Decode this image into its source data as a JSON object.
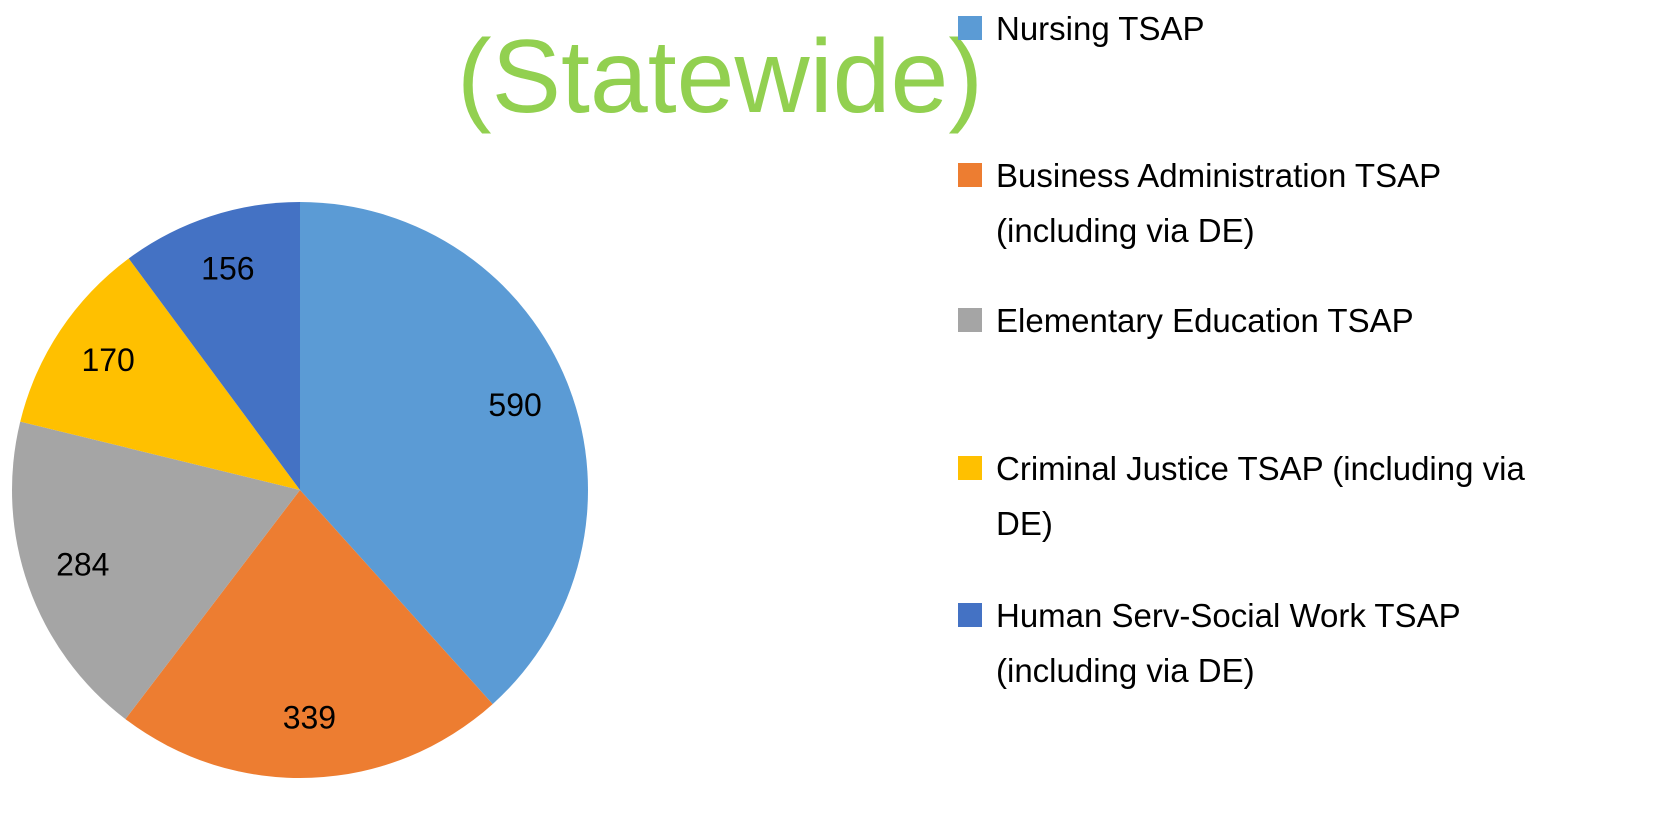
{
  "chart_data": {
    "type": "pie",
    "title": "(Statewide)",
    "categories": [
      "Nursing TSAP",
      "Business Administration TSAP (including via DE)",
      "Elementary Education TSAP",
      "Criminal Justice TSAP (including via DE)",
      "Human Serv-Social Work TSAP (including via DE)"
    ],
    "values": [
      590,
      339,
      284,
      170,
      156
    ],
    "colors": [
      "#5b9bd5",
      "#ed7d31",
      "#a5a5a5",
      "#ffc000",
      "#4472c4"
    ],
    "legend": "right"
  }
}
